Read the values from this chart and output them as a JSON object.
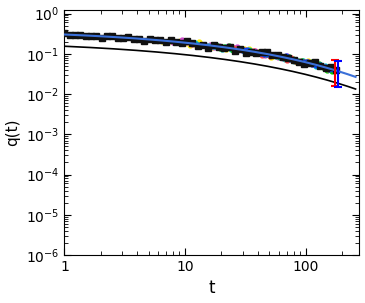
{
  "title": "",
  "xlabel": "t",
  "ylabel": "q(t)",
  "xlim": [
    1,
    280
  ],
  "ylim": [
    1e-06,
    1.2
  ],
  "bg_color": "#ffffff",
  "blue_line": {
    "A": 0.42,
    "tau": 18.0,
    "beta": 0.38,
    "color": "#3a6fd8",
    "lw": 1.5
  },
  "black_line": {
    "A": 0.22,
    "tau": 16.0,
    "beta": 0.37,
    "color": "#000000",
    "lw": 1.2
  },
  "black_squares": {
    "tstart": 1.0,
    "tend": 180.0,
    "n": 52,
    "markersize": 4.0,
    "color": "#111111"
  },
  "colored_series": [
    {
      "color": "#ffee00",
      "tstart": 5.0,
      "tend": 175.0,
      "n": 42
    },
    {
      "color": "#cc44cc",
      "tstart": 8.0,
      "tend": 155.0,
      "n": 35
    },
    {
      "color": "#00cccc",
      "tstart": 12.0,
      "tend": 145.0,
      "n": 30
    },
    {
      "color": "#00cc00",
      "tstart": 18.0,
      "tend": 165.0,
      "n": 28
    },
    {
      "color": "#ff4444",
      "tstart": 25.0,
      "tend": 155.0,
      "n": 24
    },
    {
      "color": "#0044ff",
      "tstart": 30.0,
      "tend": 170.0,
      "n": 22
    }
  ],
  "errorbars": [
    {
      "t": 175,
      "color": "#ff0000"
    },
    {
      "t": 185,
      "color": "#0000ff"
    }
  ]
}
